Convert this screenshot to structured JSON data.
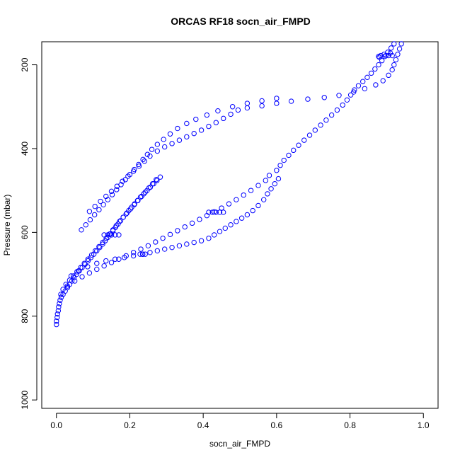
{
  "chart_data": {
    "type": "scatter",
    "title": "ORCAS RF18 socn_air_FMPD",
    "xlabel": "socn_air_FMPD",
    "ylabel": "Pressure (mbar)",
    "xlim": [
      -0.04,
      1.04
    ],
    "ylim": [
      1020,
      145
    ],
    "y_reversed": true,
    "x_ticks": [
      "0.0",
      "0.2",
      "0.4",
      "0.6",
      "0.8",
      "1.0"
    ],
    "y_ticks": [
      "200",
      "400",
      "600",
      "800",
      "1000"
    ],
    "grid": false,
    "marker": "open-circle",
    "series_color": "#0000ff",
    "series": [
      {
        "points": [
          [
            0.0,
            820
          ],
          [
            0.0,
            812
          ],
          [
            0.002,
            803
          ],
          [
            0.003,
            795
          ],
          [
            0.005,
            787
          ],
          [
            0.006,
            778
          ],
          [
            0.008,
            770
          ],
          [
            0.01,
            762
          ],
          [
            0.013,
            755
          ],
          [
            0.018,
            748
          ],
          [
            0.024,
            740
          ],
          [
            0.03,
            732
          ],
          [
            0.036,
            724
          ],
          [
            0.042,
            716
          ],
          [
            0.048,
            708
          ],
          [
            0.055,
            700
          ],
          [
            0.062,
            692
          ],
          [
            0.07,
            684
          ],
          [
            0.078,
            676
          ],
          [
            0.086,
            668
          ],
          [
            0.094,
            660
          ],
          [
            0.102,
            652
          ],
          [
            0.11,
            644
          ],
          [
            0.118,
            636
          ],
          [
            0.126,
            628
          ],
          [
            0.133,
            620
          ],
          [
            0.14,
            612
          ],
          [
            0.147,
            604
          ],
          [
            0.154,
            596
          ],
          [
            0.161,
            588
          ],
          [
            0.168,
            580
          ],
          [
            0.175,
            572
          ],
          [
            0.182,
            564
          ],
          [
            0.19,
            556
          ],
          [
            0.197,
            548
          ],
          [
            0.205,
            540
          ],
          [
            0.213,
            532
          ],
          [
            0.221,
            524
          ],
          [
            0.229,
            516
          ],
          [
            0.238,
            508
          ],
          [
            0.247,
            500
          ],
          [
            0.256,
            492
          ],
          [
            0.265,
            484
          ],
          [
            0.274,
            476
          ],
          [
            0.283,
            468
          ],
          [
            0.272,
            474
          ],
          [
            0.262,
            484
          ],
          [
            0.252,
            494
          ],
          [
            0.242,
            504
          ],
          [
            0.232,
            514
          ],
          [
            0.222,
            524
          ],
          [
            0.212,
            534
          ],
          [
            0.202,
            544
          ],
          [
            0.192,
            554
          ],
          [
            0.182,
            564
          ],
          [
            0.172,
            574
          ],
          [
            0.163,
            584
          ],
          [
            0.154,
            594
          ],
          [
            0.145,
            604
          ],
          [
            0.136,
            614
          ],
          [
            0.126,
            624
          ],
          [
            0.116,
            634
          ],
          [
            0.106,
            644
          ],
          [
            0.096,
            654
          ],
          [
            0.086,
            664
          ],
          [
            0.076,
            674
          ],
          [
            0.066,
            684
          ],
          [
            0.056,
            694
          ],
          [
            0.046,
            704
          ],
          [
            0.036,
            714
          ],
          [
            0.026,
            724
          ],
          [
            0.018,
            736
          ],
          [
            0.012,
            748
          ]
        ]
      },
      {
        "points": [
          [
            0.03,
            728
          ],
          [
            0.05,
            716
          ],
          [
            0.07,
            706
          ],
          [
            0.09,
            697
          ],
          [
            0.11,
            688
          ],
          [
            0.13,
            680
          ],
          [
            0.15,
            672
          ],
          [
            0.17,
            664
          ],
          [
            0.19,
            656
          ],
          [
            0.21,
            648
          ],
          [
            0.23,
            640
          ],
          [
            0.25,
            632
          ],
          [
            0.27,
            623
          ],
          [
            0.29,
            614
          ],
          [
            0.31,
            605
          ],
          [
            0.33,
            596
          ],
          [
            0.35,
            587
          ],
          [
            0.37,
            578
          ],
          [
            0.39,
            569
          ],
          [
            0.41,
            560
          ],
          [
            0.43,
            551
          ],
          [
            0.45,
            542
          ],
          [
            0.47,
            532
          ],
          [
            0.49,
            522
          ],
          [
            0.51,
            511
          ],
          [
            0.53,
            500
          ],
          [
            0.55,
            488
          ],
          [
            0.57,
            476
          ],
          [
            0.58,
            464
          ],
          [
            0.6,
            452
          ],
          [
            0.61,
            440
          ],
          [
            0.62,
            428
          ],
          [
            0.633,
            416
          ],
          [
            0.646,
            404
          ],
          [
            0.66,
            392
          ],
          [
            0.675,
            380
          ],
          [
            0.69,
            368
          ],
          [
            0.705,
            356
          ],
          [
            0.72,
            344
          ],
          [
            0.735,
            332
          ],
          [
            0.75,
            320
          ],
          [
            0.765,
            308
          ],
          [
            0.78,
            296
          ],
          [
            0.792,
            284
          ],
          [
            0.802,
            272
          ],
          [
            0.812,
            260
          ],
          [
            0.823,
            250
          ],
          [
            0.835,
            240
          ],
          [
            0.847,
            230
          ],
          [
            0.858,
            220
          ],
          [
            0.868,
            210
          ],
          [
            0.878,
            200
          ],
          [
            0.887,
            190
          ],
          [
            0.895,
            180
          ],
          [
            0.903,
            170
          ],
          [
            0.912,
            160
          ],
          [
            0.92,
            150
          ]
        ]
      },
      {
        "points": [
          [
            0.94,
            150
          ],
          [
            0.935,
            162
          ],
          [
            0.93,
            175
          ],
          [
            0.925,
            188
          ],
          [
            0.92,
            200
          ],
          [
            0.915,
            212
          ],
          [
            0.905,
            225
          ],
          [
            0.89,
            238
          ],
          [
            0.87,
            248
          ],
          [
            0.84,
            257
          ],
          [
            0.81,
            265
          ],
          [
            0.77,
            273
          ],
          [
            0.73,
            278
          ],
          [
            0.685,
            282
          ],
          [
            0.64,
            287
          ],
          [
            0.6,
            292
          ],
          [
            0.56,
            298
          ],
          [
            0.52,
            303
          ],
          [
            0.495,
            308
          ],
          [
            0.475,
            318
          ],
          [
            0.455,
            328
          ],
          [
            0.435,
            338
          ],
          [
            0.415,
            347
          ],
          [
            0.395,
            356
          ],
          [
            0.375,
            364
          ],
          [
            0.355,
            372
          ],
          [
            0.335,
            380
          ],
          [
            0.315,
            388
          ],
          [
            0.295,
            396
          ],
          [
            0.275,
            406
          ],
          [
            0.255,
            418
          ],
          [
            0.24,
            430
          ],
          [
            0.225,
            442
          ],
          [
            0.21,
            454
          ],
          [
            0.195,
            466
          ],
          [
            0.18,
            478
          ],
          [
            0.165,
            490
          ],
          [
            0.15,
            502
          ],
          [
            0.135,
            514
          ],
          [
            0.12,
            526
          ],
          [
            0.105,
            538
          ],
          [
            0.09,
            550
          ]
        ]
      },
      {
        "points": [
          [
            0.6,
            280
          ],
          [
            0.56,
            286
          ],
          [
            0.52,
            292
          ],
          [
            0.48,
            300
          ],
          [
            0.44,
            310
          ],
          [
            0.41,
            320
          ],
          [
            0.38,
            330
          ],
          [
            0.355,
            340
          ],
          [
            0.33,
            352
          ],
          [
            0.31,
            365
          ],
          [
            0.292,
            378
          ],
          [
            0.275,
            390
          ],
          [
            0.26,
            402
          ],
          [
            0.248,
            414
          ],
          [
            0.236,
            426
          ],
          [
            0.224,
            438
          ],
          [
            0.212,
            450
          ],
          [
            0.2,
            462
          ],
          [
            0.188,
            474
          ],
          [
            0.176,
            486
          ],
          [
            0.164,
            498
          ],
          [
            0.152,
            510
          ],
          [
            0.14,
            522
          ],
          [
            0.128,
            534
          ],
          [
            0.116,
            546
          ],
          [
            0.104,
            558
          ],
          [
            0.092,
            570
          ],
          [
            0.08,
            582
          ],
          [
            0.068,
            594
          ]
        ]
      },
      {
        "points": [
          [
            0.235,
            652
          ],
          [
            0.255,
            648
          ],
          [
            0.275,
            644
          ],
          [
            0.295,
            640
          ],
          [
            0.315,
            636
          ],
          [
            0.335,
            632
          ],
          [
            0.355,
            628
          ],
          [
            0.375,
            624
          ],
          [
            0.395,
            620
          ],
          [
            0.415,
            614
          ],
          [
            0.43,
            606
          ],
          [
            0.445,
            598
          ],
          [
            0.46,
            590
          ],
          [
            0.475,
            582
          ],
          [
            0.49,
            574
          ],
          [
            0.505,
            566
          ],
          [
            0.52,
            558
          ],
          [
            0.535,
            548
          ],
          [
            0.55,
            536
          ],
          [
            0.565,
            522
          ],
          [
            0.575,
            508
          ],
          [
            0.585,
            496
          ],
          [
            0.595,
            484
          ],
          [
            0.605,
            472
          ]
        ]
      },
      {
        "points": [
          [
            0.235,
            652
          ],
          [
            0.21,
            656
          ],
          [
            0.185,
            660
          ],
          [
            0.16,
            664
          ],
          [
            0.135,
            668
          ],
          [
            0.11,
            674
          ],
          [
            0.085,
            682
          ],
          [
            0.06,
            692
          ],
          [
            0.04,
            704
          ]
        ]
      },
      {
        "points": [
          [
            0.13,
            606
          ],
          [
            0.14,
            606
          ],
          [
            0.15,
            606
          ],
          [
            0.16,
            606
          ],
          [
            0.17,
            606
          ],
          [
            0.415,
            552
          ],
          [
            0.425,
            552
          ],
          [
            0.435,
            552
          ],
          [
            0.445,
            552
          ],
          [
            0.455,
            552
          ],
          [
            0.228,
            652
          ],
          [
            0.235,
            652
          ],
          [
            0.242,
            652
          ],
          [
            0.878,
            180
          ],
          [
            0.884,
            178
          ],
          [
            0.898,
            178
          ],
          [
            0.905,
            178
          ],
          [
            0.915,
            178
          ],
          [
            0.88,
            182
          ],
          [
            0.893,
            175
          ],
          [
            0.91,
            172
          ]
        ]
      }
    ]
  }
}
